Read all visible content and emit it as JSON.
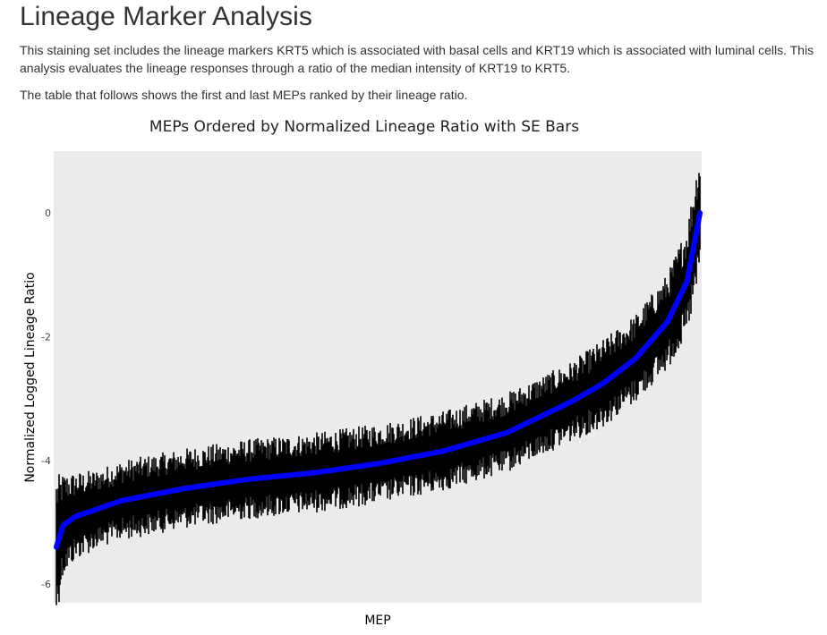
{
  "page": {
    "heading": "Lineage Marker Analysis",
    "paragraph1": "This staining set includes the lineage markers KRT5 which is associated with basal cells and KRT19 which is associated with luminal cells. This analysis evaluates the lineage responses through a ratio of the median intensity of KRT19 to KRT5.",
    "paragraph2": "The table that follows shows the first and last MEPs ranked by their lineage ratio."
  },
  "colors": {
    "panel_background": "#ebebeb",
    "line": "#0000ff",
    "error_bars": "#000000"
  },
  "chart_data": {
    "type": "line",
    "title": "MEPs Ordered by Normalized Lineage Ratio with SE Bars",
    "xlabel": "MEP",
    "ylabel": "Normalized Logged Lineage Ratio",
    "ylim": [
      -6.3,
      1.0
    ],
    "y_ticks": [
      {
        "value": 0,
        "label": "0"
      },
      {
        "value": -2,
        "label": "-2"
      },
      {
        "value": -4,
        "label": "-4"
      },
      {
        "value": -6,
        "label": "-6"
      }
    ],
    "x_tick_labels": "none",
    "grid": false,
    "error_bars": "SE",
    "series": [
      {
        "x": [
          0,
          0.01,
          0.03,
          0.06,
          0.1,
          0.2,
          0.3,
          0.4,
          0.5,
          0.6,
          0.7,
          0.75,
          0.8,
          0.85,
          0.9,
          0.95,
          0.98,
          1.0
        ],
        "values": [
          -5.4,
          -5.05,
          -4.9,
          -4.8,
          -4.65,
          -4.45,
          -4.3,
          -4.2,
          -4.05,
          -3.85,
          -3.55,
          -3.3,
          -3.05,
          -2.75,
          -2.35,
          -1.75,
          -1.1,
          0.0
        ],
        "se_halfwidth": [
          0.9,
          0.65,
          0.55,
          0.5,
          0.5,
          0.5,
          0.5,
          0.5,
          0.5,
          0.5,
          0.5,
          0.5,
          0.5,
          0.55,
          0.55,
          0.6,
          0.7,
          0.8
        ]
      }
    ]
  }
}
